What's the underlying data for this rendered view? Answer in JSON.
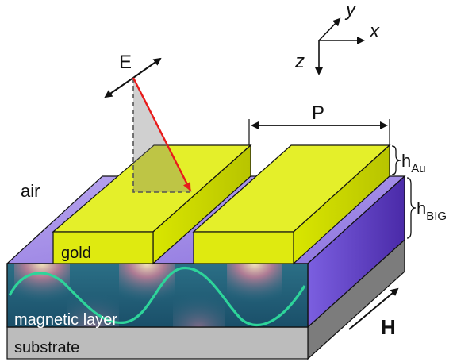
{
  "labels": {
    "axis_y": "y",
    "axis_x": "x",
    "axis_z": "z",
    "field_e": "E",
    "period": "P",
    "h_au_base": "h",
    "h_au_sub": "Au",
    "h_big_base": "h",
    "h_big_sub": "BIG",
    "air": "air",
    "gold": "gold",
    "magnetic_layer": "magnetic layer",
    "substrate": "substrate",
    "field_h": "H"
  },
  "colors": {
    "gold_top": "#e4ef2a",
    "gold_side": "#c9d400",
    "purple_top": "#9d86e6",
    "purple_side": "#5a3bbd",
    "substrate_front": "#b9b9b9",
    "substrate_side": "#7c7c7c",
    "magnetic_teal": "#1f5f78",
    "wave": "#2ed49a",
    "e_vector": "#e81b1b"
  }
}
